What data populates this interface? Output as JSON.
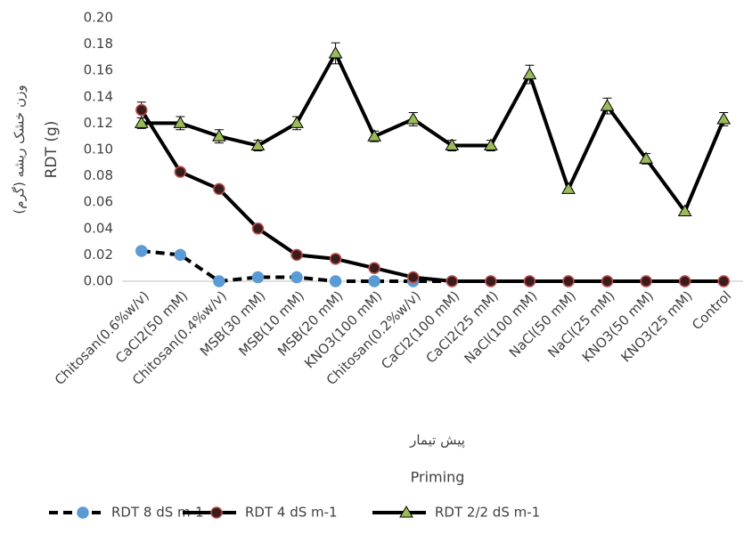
{
  "chart_data": {
    "type": "line",
    "x_label": "Priming",
    "x_label_fa": "پیش تیمار",
    "y_label": "RDT (g)",
    "y_label_fa": "وزن خشک ریشه (گرم)",
    "categories": [
      "Chitosan(0.6%w/v)",
      "CaCl2(50 mM)",
      "Chitosan(0.4%w/v)",
      "MSB(30 mM)",
      "MSB(10 mM)",
      "MSB(20 mM)",
      "KNO3(100 mM)",
      "Chitosan(0.2%w/v)",
      "CaCl2(100 mM)",
      "CaCl2(25 mM)",
      "NaCl(100 mM)",
      "NaCl(50 mM)",
      "NaCl(25 mM)",
      "KNO3(50 mM)",
      "KNO3(25 mM)",
      "Control"
    ],
    "ylim": [
      0,
      0.2
    ],
    "yticks": [
      {
        "value": 0,
        "label": "0.00"
      },
      {
        "value": 0.02,
        "label": "0.02"
      },
      {
        "value": 0.04,
        "label": "0.04"
      },
      {
        "value": 0.06,
        "label": "0.06"
      },
      {
        "value": 0.08,
        "label": "0.08"
      },
      {
        "value": 0.1,
        "label": "0.10"
      },
      {
        "value": 0.12,
        "label": "0.12"
      },
      {
        "value": 0.14,
        "label": "0.14"
      },
      {
        "value": 0.16,
        "label": "0.16"
      },
      {
        "value": 0.18,
        "label": "0.18"
      },
      {
        "value": 0.2,
        "label": "0.20"
      }
    ],
    "legend": "bottom",
    "series": [
      {
        "name": "RDT 8 dS m-1",
        "color": "#000000",
        "line_style": "dashed",
        "marker": "circle",
        "marker_fill": "#5b9bd5",
        "marker_edge": "#5b9bd5",
        "values": [
          0.023,
          0.02,
          0,
          0.003,
          0.003,
          0,
          0,
          0,
          0,
          0,
          0,
          0,
          0,
          0,
          0,
          0
        ]
      },
      {
        "name": "RDT 4 dS m-1",
        "color": "#000000",
        "line_style": "solid",
        "marker": "circle",
        "marker_fill": "#3a1c1c",
        "marker_edge": "#c0504d",
        "values": [
          0.13,
          0.083,
          0.07,
          0.04,
          0.02,
          0.017,
          0.01,
          0.003,
          0,
          0,
          0,
          0,
          0,
          0,
          0,
          0
        ],
        "errors": [
          0.006,
          0,
          0,
          0,
          0,
          0,
          0,
          0,
          0,
          0,
          0,
          0,
          0,
          0,
          0,
          0
        ]
      },
      {
        "name": "RDT 2/2 dS m-1",
        "color": "#000000",
        "line_style": "solid",
        "marker": "triangle",
        "marker_fill": "#9bbb59",
        "marker_edge": "#000000",
        "values": [
          0.12,
          0.12,
          0.11,
          0.103,
          0.12,
          0.173,
          0.11,
          0.123,
          0.103,
          0.103,
          0.157,
          0.07,
          0.133,
          0.093,
          0.053,
          0.123
        ],
        "errors": [
          0.004,
          0.005,
          0.005,
          0.004,
          0.005,
          0.008,
          0.004,
          0.005,
          0.004,
          0.004,
          0.007,
          0,
          0.006,
          0.004,
          0,
          0.005
        ]
      }
    ]
  }
}
